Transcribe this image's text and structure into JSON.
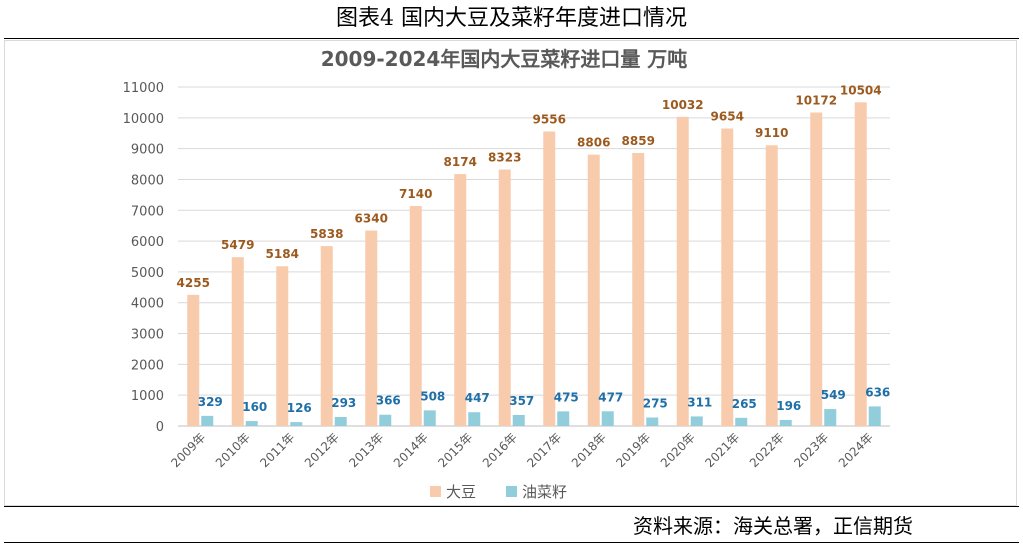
{
  "caption": "图表4  国内大豆及菜籽年度进口情况",
  "source": "资料来源：海关总署，正信期货",
  "colors": {
    "soybean": "#F8CBAD",
    "rapeseed": "#92CDDC",
    "soy_label": "#9C5A1F",
    "rape_label": "#1F6FA8",
    "axis_text": "#595959",
    "grid": "#D9D9D9"
  },
  "chart_data": {
    "type": "bar",
    "title": "2009-2024年国内大豆菜籽进口量  万吨",
    "categories": [
      "2009年",
      "2010年",
      "2011年",
      "2012年",
      "2013年",
      "2014年",
      "2015年",
      "2016年",
      "2017年",
      "2018年",
      "2019年",
      "2020年",
      "2021年",
      "2022年",
      "2023年",
      "2024年"
    ],
    "series": [
      {
        "name": "大豆",
        "values": [
          4255,
          5479,
          5184,
          5838,
          6340,
          7140,
          8174,
          8323,
          9556,
          8806,
          8859,
          10032,
          9654,
          9110,
          10172,
          10504
        ]
      },
      {
        "name": "油菜籽",
        "values": [
          329,
          160,
          126,
          293,
          366,
          508,
          447,
          357,
          475,
          477,
          275,
          311,
          265,
          196,
          549,
          636
        ]
      }
    ],
    "ylim": [
      0,
      11000
    ],
    "yticks": [
      0,
      1000,
      2000,
      3000,
      4000,
      5000,
      6000,
      7000,
      8000,
      9000,
      10000,
      11000
    ],
    "grid": true,
    "legend_position": "bottom",
    "xlabel": "",
    "ylabel": ""
  }
}
